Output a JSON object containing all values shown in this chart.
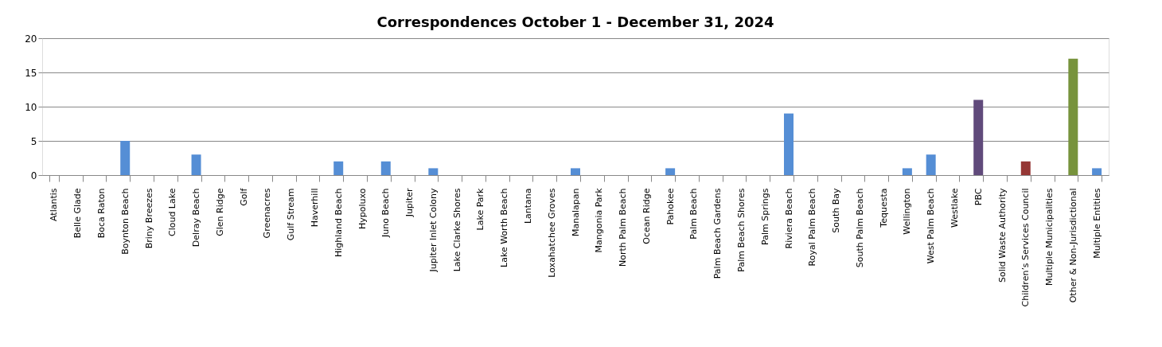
{
  "chart_data": {
    "type": "bar",
    "title": "Correspondences October 1 - December 31, 2024",
    "categories": [
      "Atlantis",
      "Belle Glade",
      "Boca Raton",
      "Boynton Beach",
      "Briny Breezes",
      "Cloud Lake",
      "Delray Beach",
      "Glen Ridge",
      "Golf",
      "Greenacres",
      "Gulf Stream",
      "Haverhill",
      "Highland Beach",
      "Hypoluxo",
      "Juno Beach",
      "Jupiter",
      "Jupiter Inlet Colony",
      "Lake Clarke Shores",
      "Lake Park",
      "Lake Worth Beach",
      "Lantana",
      "Loxahatchee Groves",
      "Manalapan",
      "Mangonia Park",
      "North Palm Beach",
      "Ocean Ridge",
      "Pahokee",
      "Palm Beach",
      "Palm Beach Gardens",
      "Palm Beach Shores",
      "Palm Springs",
      "Riviera Beach",
      "Royal Palm Beach",
      "South Bay",
      "South Palm Beach",
      "Tequesta",
      "Wellington",
      "West Palm Beach",
      "Westlake",
      "PBC",
      "Solid Waste Authority",
      "Children’s Services Council",
      "Multiple Municipalities",
      "Other & Non-Jurisdictional",
      "Multiple Entities"
    ],
    "values": [
      0,
      0,
      0,
      5,
      0,
      0,
      3,
      0,
      0,
      0,
      0,
      0,
      2,
      0,
      2,
      0,
      1,
      0,
      0,
      0,
      0,
      0,
      1,
      0,
      0,
      0,
      1,
      0,
      0,
      0,
      0,
      9,
      0,
      0,
      0,
      0,
      1,
      3,
      0,
      11,
      0,
      2,
      0,
      17,
      1
    ],
    "colors": [
      "#558ed5",
      "#558ed5",
      "#558ed5",
      "#558ed5",
      "#558ed5",
      "#558ed5",
      "#558ed5",
      "#558ed5",
      "#558ed5",
      "#558ed5",
      "#558ed5",
      "#558ed5",
      "#558ed5",
      "#558ed5",
      "#558ed5",
      "#558ed5",
      "#558ed5",
      "#558ed5",
      "#558ed5",
      "#558ed5",
      "#558ed5",
      "#558ed5",
      "#558ed5",
      "#558ed5",
      "#558ed5",
      "#558ed5",
      "#558ed5",
      "#558ed5",
      "#558ed5",
      "#558ed5",
      "#558ed5",
      "#558ed5",
      "#558ed5",
      "#558ed5",
      "#558ed5",
      "#558ed5",
      "#558ed5",
      "#558ed5",
      "#558ed5",
      "#604a7b",
      "#558ed5",
      "#953735",
      "#558ed5",
      "#77933c",
      "#558ed5"
    ],
    "ylim": [
      0,
      20
    ],
    "yticks": [
      0,
      5,
      10,
      15,
      20
    ],
    "grid": "y"
  }
}
